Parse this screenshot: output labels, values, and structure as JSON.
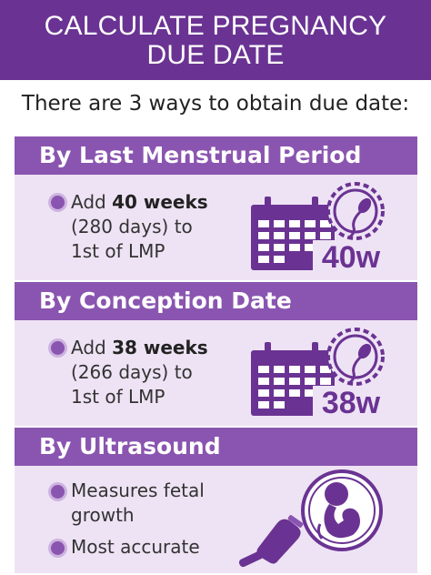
{
  "header": {
    "line1": "CALCULATE PREGNANCY",
    "line2": "DUE DATE"
  },
  "intro": "There are 3 ways to obtain due date:",
  "sections": [
    {
      "title": "By Last Menstrual Period",
      "prefix": "Add ",
      "bold": "40 weeks",
      "line2": "(280 days) to",
      "line3": "1st of LMP",
      "badge": "40w"
    },
    {
      "title": "By Conception Date",
      "prefix": "Add ",
      "bold": "38 weeks",
      "line2": "(266 days) to",
      "line3": "1st of LMP",
      "badge": "38w"
    },
    {
      "title": "By Ultrasound",
      "bullet1_line1": "Measures fetal",
      "bullet1_line2": "growth",
      "bullet2": "Most accurate"
    }
  ],
  "colors": {
    "header": "#6a3393",
    "band": "#8a55b0",
    "panel": "#eee3f4",
    "icon": "#6a3393"
  },
  "icons": [
    "calendar-icon",
    "sperm-egg-icon",
    "ultrasound-probe-icon",
    "fetus-icon"
  ]
}
